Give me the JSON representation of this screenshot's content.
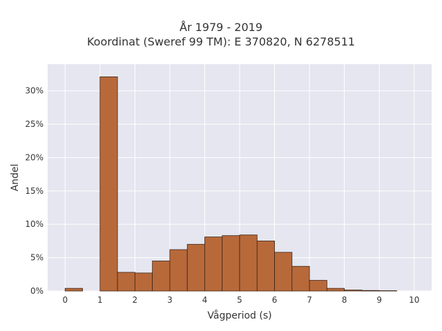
{
  "chart_data": {
    "type": "bar",
    "title_line1": "År 1979 - 2019",
    "title_line2": "Koordinat (Sweref 99 TM): E 370820, N 6278511",
    "xlabel": "Vågperiod (s)",
    "ylabel": "Andel",
    "bin_width": 0.5,
    "bins": [
      {
        "x0": 0.0,
        "value": 0.004
      },
      {
        "x0": 1.0,
        "value": 0.321
      },
      {
        "x0": 1.5,
        "value": 0.028
      },
      {
        "x0": 2.0,
        "value": 0.027
      },
      {
        "x0": 2.5,
        "value": 0.045
      },
      {
        "x0": 3.0,
        "value": 0.062
      },
      {
        "x0": 3.5,
        "value": 0.07
      },
      {
        "x0": 4.0,
        "value": 0.081
      },
      {
        "x0": 4.5,
        "value": 0.083
      },
      {
        "x0": 5.0,
        "value": 0.084
      },
      {
        "x0": 5.5,
        "value": 0.075
      },
      {
        "x0": 6.0,
        "value": 0.058
      },
      {
        "x0": 6.5,
        "value": 0.037
      },
      {
        "x0": 7.0,
        "value": 0.016
      },
      {
        "x0": 7.5,
        "value": 0.004
      },
      {
        "x0": 8.0,
        "value": 0.0015
      },
      {
        "x0": 8.5,
        "value": 0.0008
      },
      {
        "x0": 9.0,
        "value": 0.0005
      }
    ],
    "xlim": [
      -0.5,
      10.5
    ],
    "ylim": [
      0,
      0.34
    ],
    "xticks": [
      0,
      1,
      2,
      3,
      4,
      5,
      6,
      7,
      8,
      9,
      10
    ],
    "xtick_labels": [
      "0",
      "1",
      "2",
      "3",
      "4",
      "5",
      "6",
      "7",
      "8",
      "9",
      "10"
    ],
    "yticks": [
      0,
      0.05,
      0.1,
      0.15,
      0.2,
      0.25,
      0.3
    ],
    "ytick_labels": [
      "0%",
      "5%",
      "10%",
      "15%",
      "20%",
      "25%",
      "30%"
    ],
    "grid": true,
    "colors": {
      "bar_fill": "#b8693a",
      "bar_edge": "#3a2418",
      "plot_bg": "#e5e6ef",
      "grid": "#ffffff"
    }
  }
}
